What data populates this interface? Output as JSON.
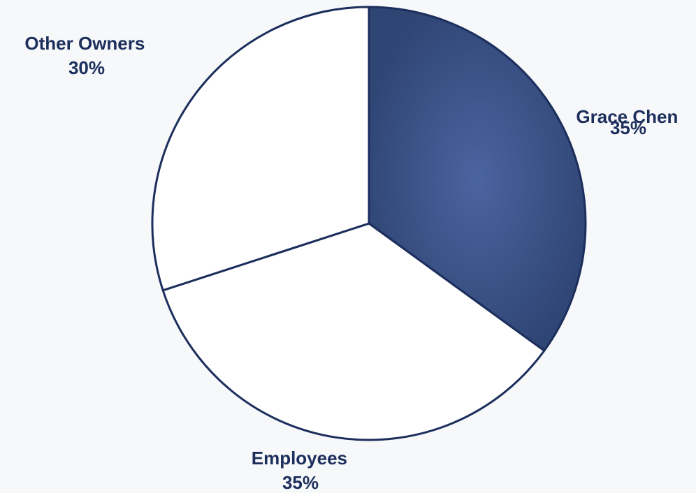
{
  "chart_data": {
    "type": "pie",
    "title": "",
    "slices": [
      {
        "label": "Grace Chen",
        "value": 35,
        "percent_label": "35%",
        "fill": "#3f5a92"
      },
      {
        "label": "Employees",
        "value": 35,
        "percent_label": "35%",
        "fill": "#ffffff"
      },
      {
        "label": "Other Owners",
        "value": 30,
        "percent_label": "30%",
        "fill": "#ffffff"
      }
    ],
    "start": "12 o'clock",
    "direction": "clockwise",
    "legend": "none",
    "labels": "outside",
    "colors": {
      "outline": "#1c2e5c",
      "label_text": "#1c2e5c",
      "highlight_fill": "#3f5a92",
      "background": "#f7f8fa"
    }
  }
}
